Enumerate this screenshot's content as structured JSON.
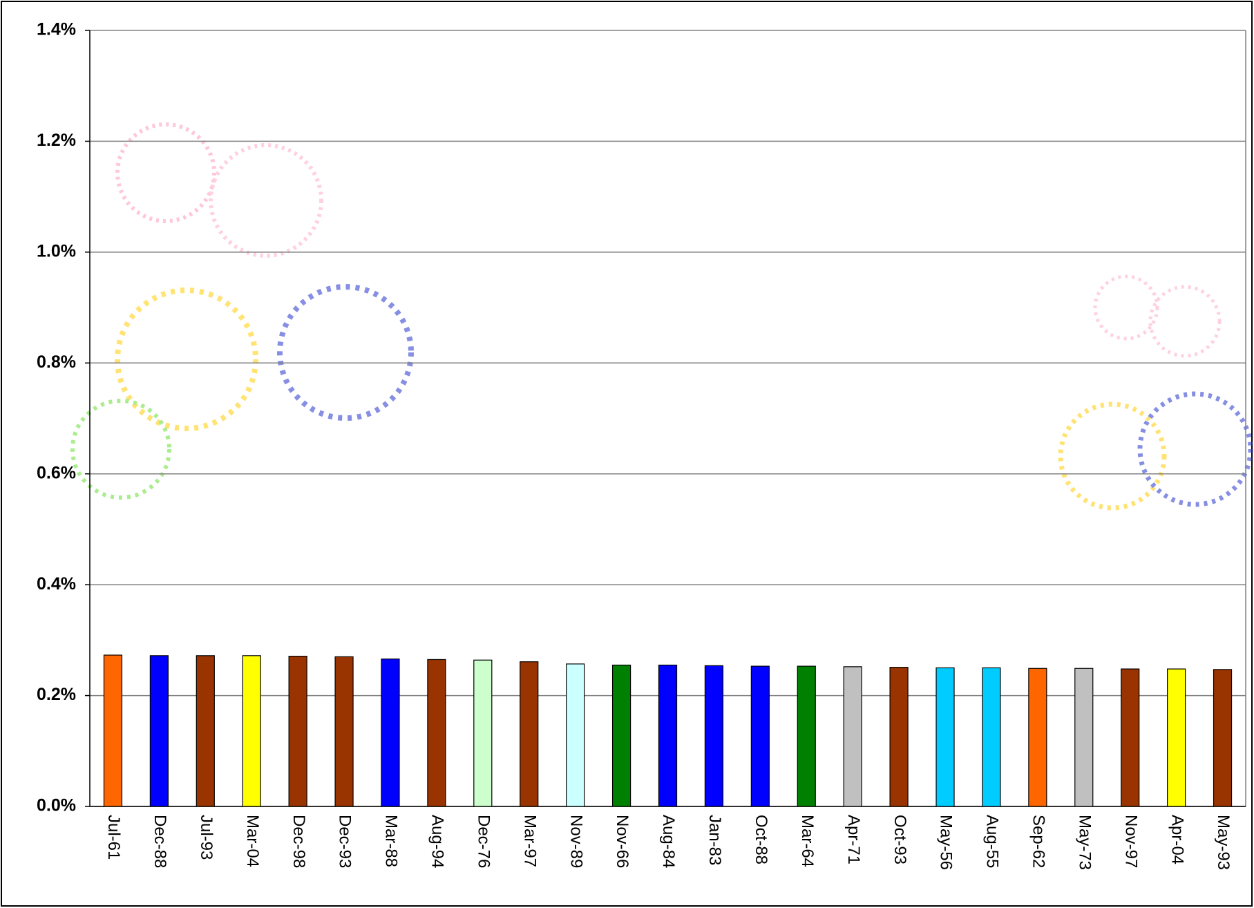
{
  "chart_data": {
    "type": "bar",
    "categories": [
      "Jul-61",
      "Dec-88",
      "Jul-93",
      "Mar-04",
      "Dec-98",
      "Dec-93",
      "Mar-88",
      "Aug-94",
      "Dec-76",
      "Mar-97",
      "Nov-89",
      "Nov-66",
      "Aug-84",
      "Jan-83",
      "Oct-88",
      "Mar-64",
      "Apr-71",
      "Oct-93",
      "May-56",
      "Aug-55",
      "Sep-62",
      "May-73",
      "Nov-97",
      "Apr-04",
      "May-93"
    ],
    "values": [
      0.273,
      0.272,
      0.272,
      0.272,
      0.271,
      0.27,
      0.266,
      0.265,
      0.264,
      0.261,
      0.257,
      0.255,
      0.255,
      0.254,
      0.253,
      0.253,
      0.252,
      0.251,
      0.25,
      0.25,
      0.249,
      0.249,
      0.248,
      0.248,
      0.247
    ],
    "colors": [
      "#ff6600",
      "#0000ff",
      "#993300",
      "#ffff00",
      "#993300",
      "#993300",
      "#0000ff",
      "#993300",
      "#ccffcc",
      "#993300",
      "#ccffff",
      "#008000",
      "#0000ff",
      "#0000ff",
      "#0000ff",
      "#008000",
      "#c0c0c0",
      "#993300",
      "#00ccff",
      "#00ccff",
      "#ff6600",
      "#c0c0c0",
      "#993300",
      "#ffff00",
      "#993300"
    ],
    "ylim": [
      0,
      1.4
    ],
    "yticks": [
      {
        "value": 0,
        "label": "0.0%"
      },
      {
        "value": 0.2,
        "label": "0.2%"
      },
      {
        "value": 0.4,
        "label": "0.4%"
      },
      {
        "value": 0.6,
        "label": "0.6%"
      },
      {
        "value": 0.8,
        "label": "0.8%"
      },
      {
        "value": 1.0,
        "label": "1.0%"
      },
      {
        "value": 1.2,
        "label": "1.2%"
      },
      {
        "value": 1.4,
        "label": "1.4%"
      }
    ],
    "grid": true
  }
}
